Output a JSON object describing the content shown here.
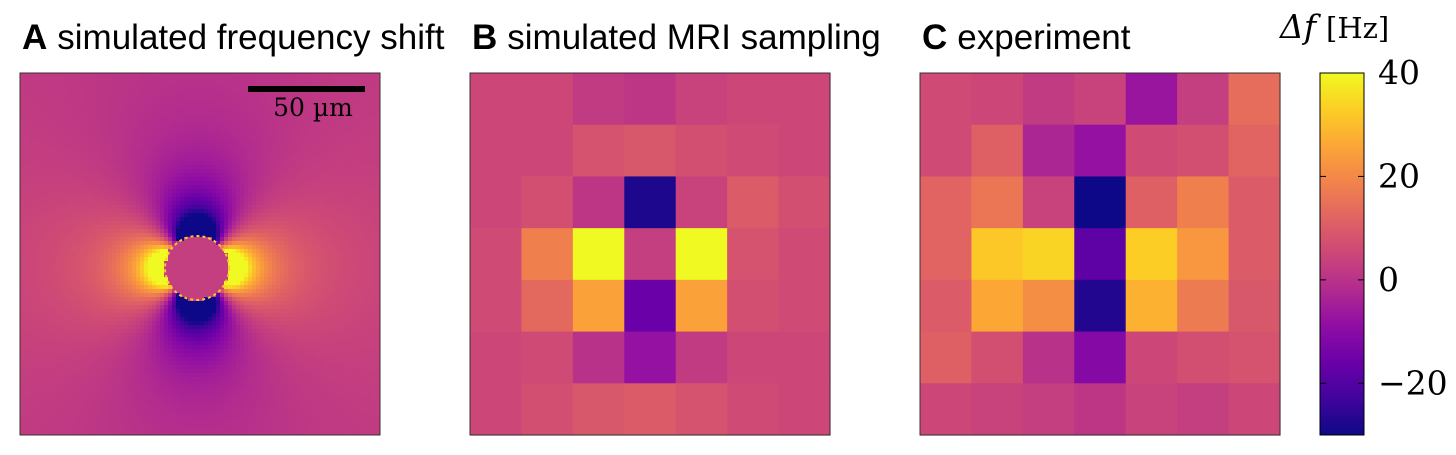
{
  "chart_data": {
    "type": "heatmap",
    "colormap": "plasma",
    "vmin": -30,
    "vmax": 40,
    "panels": [
      {
        "letter": "A",
        "title": "simulated frequency shift",
        "kind": "dipole-field",
        "background_value": 2,
        "peak_value": 40,
        "min_value": -30,
        "scale_bar_label": "50 µm"
      },
      {
        "letter": "B",
        "title": "simulated MRI sampling",
        "kind": "grid",
        "rows": 7,
        "cols": 7,
        "values": [
          [
            5,
            5,
            2,
            1,
            4,
            5,
            5
          ],
          [
            5,
            5,
            8,
            9,
            7,
            6,
            5
          ],
          [
            5,
            7,
            1,
            -28,
            4,
            10,
            7
          ],
          [
            6,
            18,
            40,
            3,
            40,
            8,
            6
          ],
          [
            6,
            13,
            25,
            -16,
            25,
            7,
            6
          ],
          [
            5,
            6,
            0,
            -8,
            2,
            5,
            5
          ],
          [
            5,
            7,
            9,
            10,
            8,
            6,
            5
          ]
        ]
      },
      {
        "letter": "C",
        "title": "experiment",
        "kind": "grid",
        "rows": 7,
        "cols": 7,
        "values": [
          [
            6,
            5,
            2,
            4,
            -7,
            3,
            14
          ],
          [
            6,
            11,
            -3,
            -8,
            6,
            7,
            12
          ],
          [
            12,
            16,
            4,
            -30,
            11,
            18,
            10
          ],
          [
            12,
            32,
            34,
            -18,
            33,
            23,
            10
          ],
          [
            10,
            26,
            21,
            -27,
            28,
            17,
            9
          ],
          [
            11,
            7,
            0,
            -11,
            5,
            7,
            8
          ],
          [
            5,
            4,
            3,
            1,
            4,
            3,
            5
          ]
        ]
      }
    ],
    "colorbar": {
      "label": "Δf",
      "unit": "[Hz]",
      "ticks": [
        40,
        20,
        0,
        -20
      ],
      "tick_labels": [
        "40",
        "20",
        "0",
        "−20"
      ]
    }
  }
}
